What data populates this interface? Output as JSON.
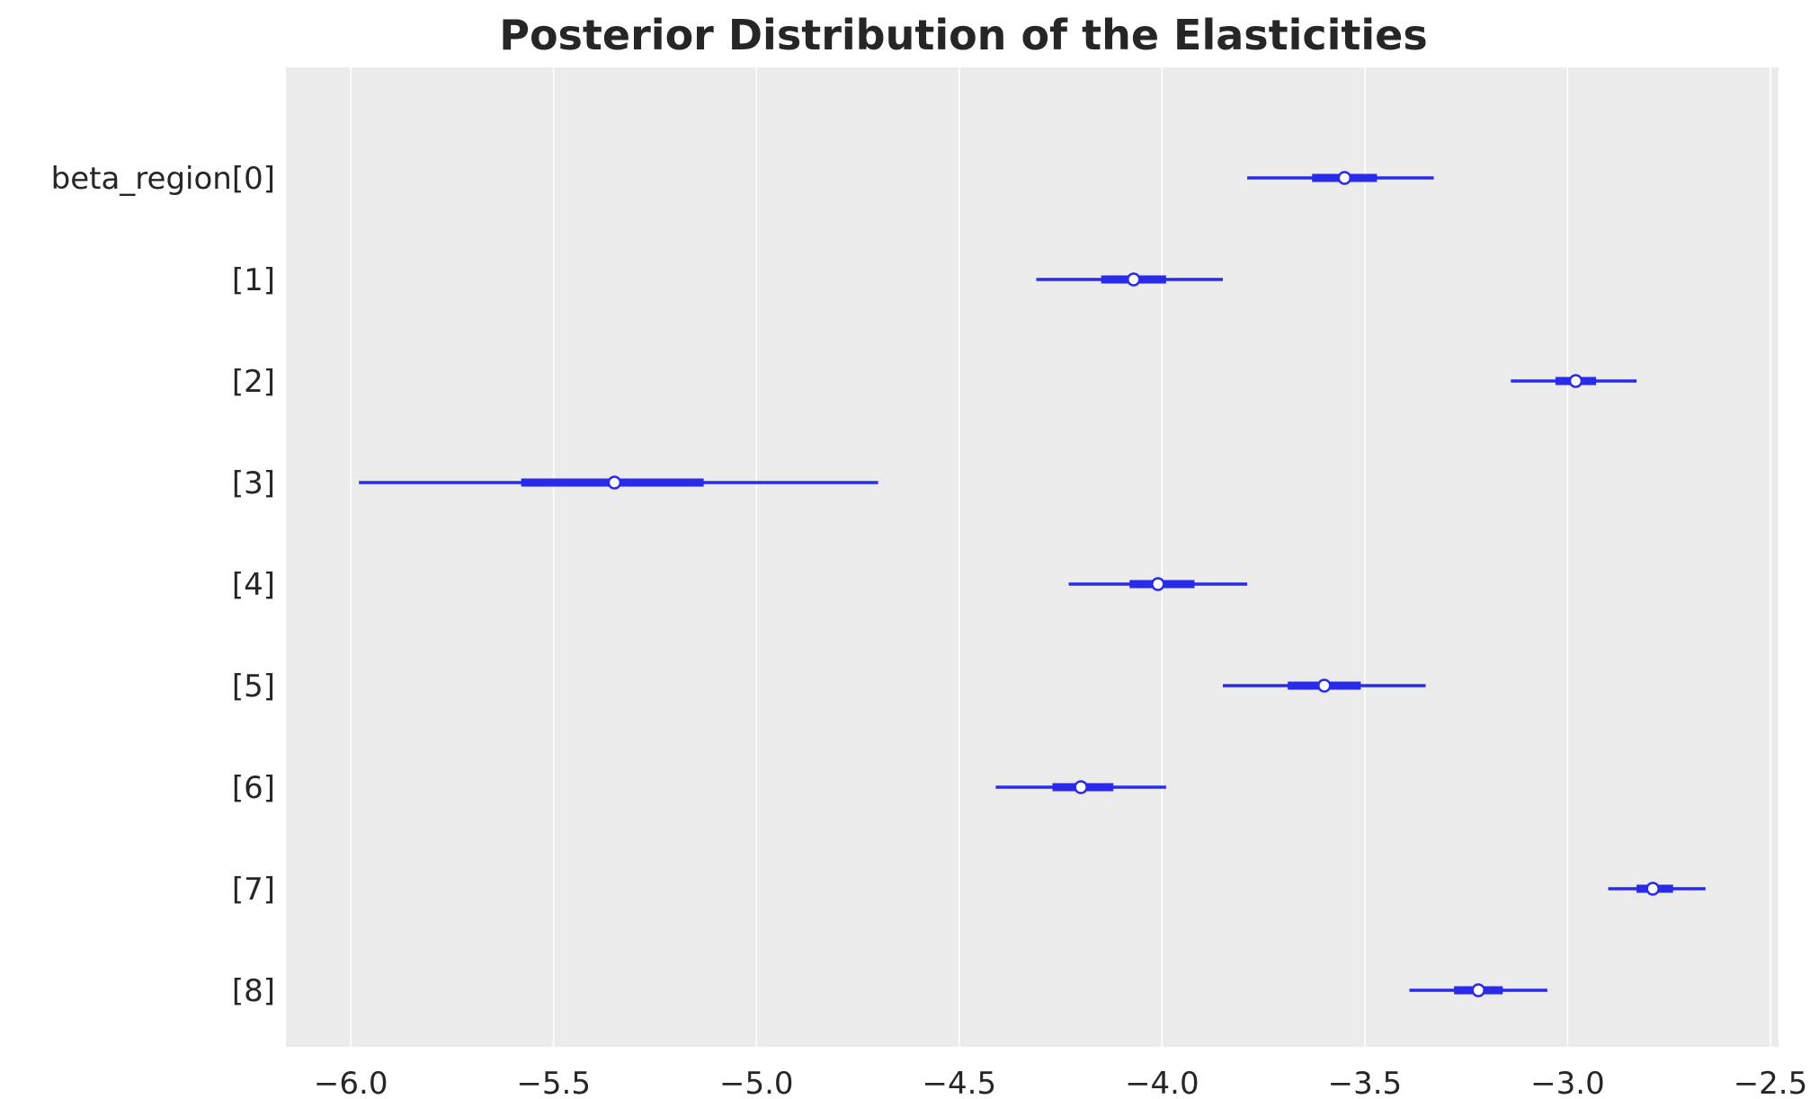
{
  "chart_data": {
    "type": "forest",
    "title": "Posterior Distribution of the Elasticities",
    "xlabel": "",
    "ylabel": "",
    "xlim": [
      -6.16,
      -2.48
    ],
    "x_ticks": [
      -6.0,
      -5.5,
      -5.0,
      -4.5,
      -4.0,
      -3.5,
      -3.0,
      -2.5
    ],
    "x_tick_labels": [
      "−6.0",
      "−5.5",
      "−5.0",
      "−4.5",
      "−4.0",
      "−3.5",
      "−3.0",
      "−2.5"
    ],
    "grid": true,
    "series": [
      {
        "label": "beta_region[0]",
        "median": -3.55,
        "hdi_low": -3.79,
        "hdi_high": -3.33,
        "iqr_low": -3.63,
        "iqr_high": -3.47
      },
      {
        "label": "[1]",
        "median": -4.07,
        "hdi_low": -4.31,
        "hdi_high": -3.85,
        "iqr_low": -4.15,
        "iqr_high": -3.99
      },
      {
        "label": "[2]",
        "median": -2.98,
        "hdi_low": -3.14,
        "hdi_high": -2.83,
        "iqr_low": -3.03,
        "iqr_high": -2.93
      },
      {
        "label": "[3]",
        "median": -5.35,
        "hdi_low": -5.98,
        "hdi_high": -4.7,
        "iqr_low": -5.58,
        "iqr_high": -5.13
      },
      {
        "label": "[4]",
        "median": -4.01,
        "hdi_low": -4.23,
        "hdi_high": -3.79,
        "iqr_low": -4.08,
        "iqr_high": -3.92
      },
      {
        "label": "[5]",
        "median": -3.6,
        "hdi_low": -3.85,
        "hdi_high": -3.35,
        "iqr_low": -3.69,
        "iqr_high": -3.51
      },
      {
        "label": "[6]",
        "median": -4.2,
        "hdi_low": -4.41,
        "hdi_high": -3.99,
        "iqr_low": -4.27,
        "iqr_high": -4.12
      },
      {
        "label": "[7]",
        "median": -2.79,
        "hdi_low": -2.9,
        "hdi_high": -2.66,
        "iqr_low": -2.83,
        "iqr_high": -2.74
      },
      {
        "label": "[8]",
        "median": -3.22,
        "hdi_low": -3.39,
        "hdi_high": -3.05,
        "iqr_low": -3.28,
        "iqr_high": -3.16
      }
    ],
    "colors": {
      "background": "#ebebeb",
      "grid": "#ffffff",
      "line": "#2a2aeb",
      "marker_fill": "#ffffff"
    }
  }
}
